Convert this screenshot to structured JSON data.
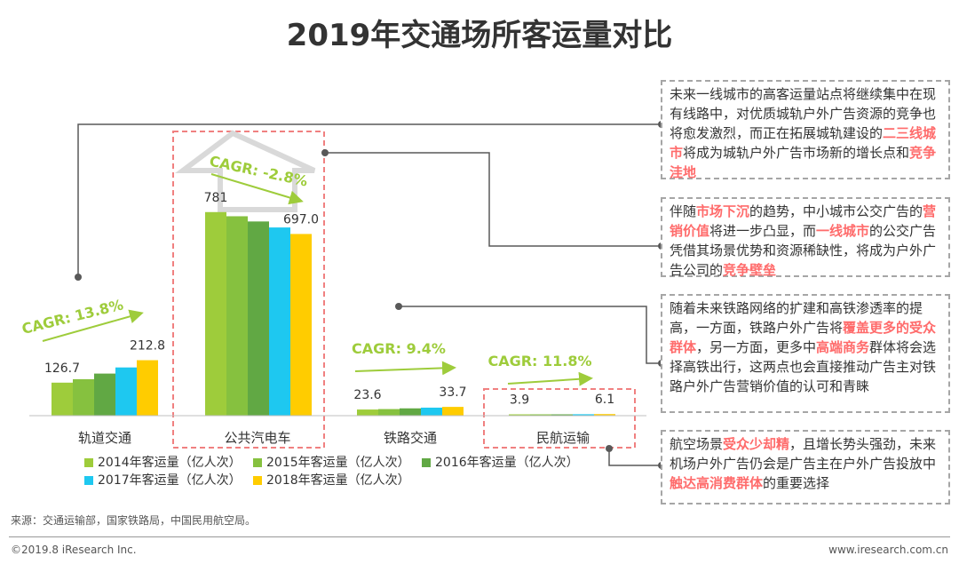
{
  "title": "2019年交通场所客运量对比",
  "colors": {
    "accent_green": "#9ecc3b",
    "dashed_red": "#f08080",
    "highlight_red": "#ff6b6b",
    "arrow_gray": "#d9d9d9"
  },
  "chart_data": {
    "type": "bar",
    "title": "2019年交通场所客运量对比",
    "unit": "亿人次",
    "categories": [
      "轨道交通",
      "公共汽电车",
      "铁路交通",
      "民航运输"
    ],
    "series": [
      {
        "name": "2014年客运量（亿人次）",
        "color": "#9ecc3b",
        "values": [
          126.7,
          781.0,
          23.6,
          3.9
        ]
      },
      {
        "name": "2015年客运量（亿人次）",
        "color": "#86c13f",
        "values": [
          140.0,
          765.0,
          25.3,
          4.4
        ]
      },
      {
        "name": "2016年客运量（亿人次）",
        "color": "#61a844",
        "values": [
          161.5,
          745.0,
          28.1,
          4.9
        ]
      },
      {
        "name": "2017年客运量（亿人次）",
        "color": "#1ec8f0",
        "values": [
          185.0,
          722.0,
          30.8,
          5.5
        ]
      },
      {
        "name": "2018年客运量（亿人次）",
        "color": "#ffcc00",
        "values": [
          212.8,
          697.0,
          33.7,
          6.1
        ]
      }
    ],
    "value_labels": [
      {
        "category": "轨道交通",
        "first": "126.7",
        "last": "212.8"
      },
      {
        "category": "公共汽电车",
        "first": "781",
        "last": "697.0"
      },
      {
        "category": "铁路交通",
        "first": "23.6",
        "last": "33.7"
      },
      {
        "category": "民航运输",
        "first": "3.9",
        "last": "6.1"
      }
    ],
    "cagr": [
      {
        "category": "轨道交通",
        "label": "CAGR: 13.8%"
      },
      {
        "category": "公共汽电车",
        "label": "CAGR: -2.8%"
      },
      {
        "category": "铁路交通",
        "label": "CAGR: 9.4%"
      },
      {
        "category": "民航运输",
        "label": "CAGR: 11.8%"
      }
    ],
    "highlighted_categories": [
      "公共汽电车",
      "民航运输"
    ]
  },
  "callouts": [
    {
      "segments": [
        {
          "t": "未来一线城市的高客运量站点将继续集中在现有线路中，对优质城轨户外广告资源的竞争也将愈发激烈，而正在拓展城轨建设的"
        },
        {
          "t": "二三线城市",
          "hl": true
        },
        {
          "t": "将成为城轨户外广告市场新的增长点和"
        },
        {
          "t": "竞争洼地",
          "hl": true
        }
      ]
    },
    {
      "segments": [
        {
          "t": "伴随"
        },
        {
          "t": "市场下沉",
          "hl": true
        },
        {
          "t": "的趋势，中小城市公交广告的"
        },
        {
          "t": "营销价值",
          "hl": true
        },
        {
          "t": "将进一步凸显，而"
        },
        {
          "t": "一线城市",
          "hl": true
        },
        {
          "t": "的公交广告凭借其场景优势和资源稀缺性，将成为户外广告公司的"
        },
        {
          "t": "竞争壁垒",
          "hl": true
        }
      ]
    },
    {
      "segments": [
        {
          "t": "随着未来铁路网络的扩建和高铁渗透率的提高，一方面，铁路户外广告将"
        },
        {
          "t": "覆盖更多的受众群体",
          "hl": true
        },
        {
          "t": "，另一方面，更多中"
        },
        {
          "t": "高端商务",
          "hl": true
        },
        {
          "t": "群体将会选择高铁出行，这两点也会直接推动广告主对铁路户外广告营销价值的认可和青睐"
        }
      ]
    },
    {
      "segments": [
        {
          "t": "航空场景"
        },
        {
          "t": "受众少却精",
          "hl": true
        },
        {
          "t": "，且增长势头强劲，未来机场户外广告仍会是广告主在户外广告投放中"
        },
        {
          "t": "触达高消费群体",
          "hl": true
        },
        {
          "t": "的重要选择"
        }
      ]
    }
  ],
  "source": "来源：交通运输部，国家铁路局，中国民用航空局。",
  "copyright": "©2019.8 iResearch Inc.",
  "website": "www.iresearch.com.cn"
}
